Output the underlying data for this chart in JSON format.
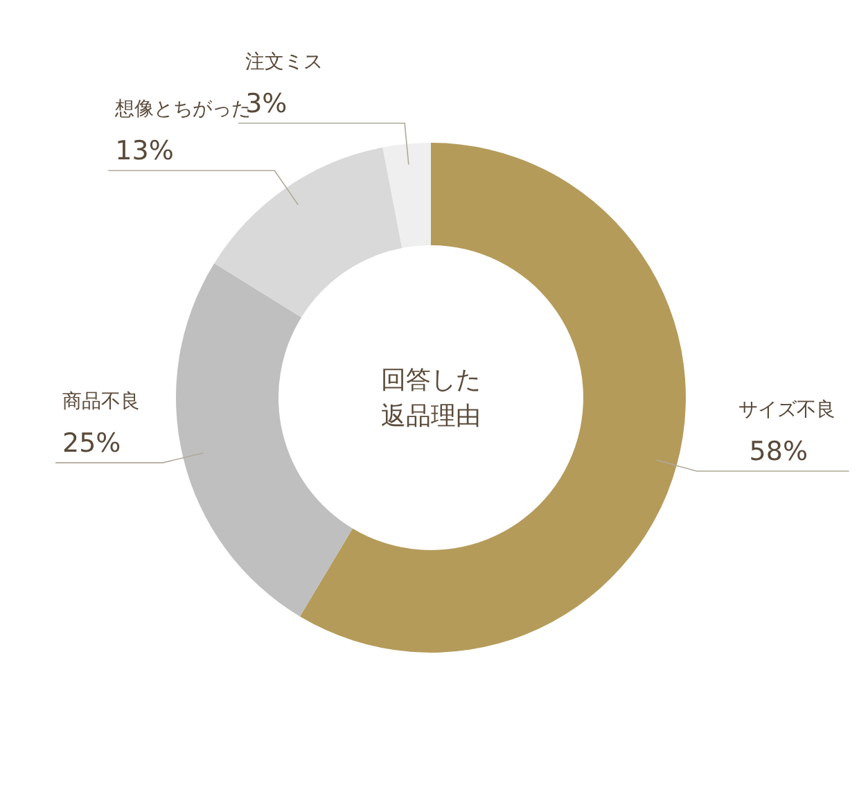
{
  "chart_data": {
    "type": "donut",
    "title": "回答した返品理由",
    "categories": [
      "サイズ不良",
      "商品不良",
      "想像とちがった",
      "注文ミス"
    ],
    "values": [
      58,
      25,
      13,
      3
    ],
    "value_labels": [
      "58%",
      "25%",
      "13%",
      "3%"
    ],
    "colors": [
      "#b59b5a",
      "#bfbfbf",
      "#d9d9d9",
      "#efefef"
    ]
  }
}
